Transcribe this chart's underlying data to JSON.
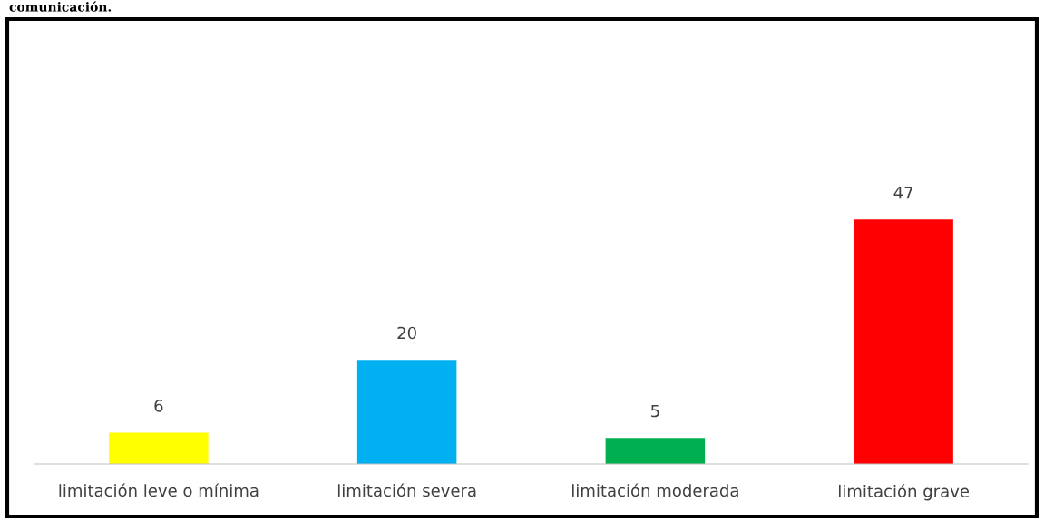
{
  "chart_data": {
    "type": "bar",
    "title": "comunicación.",
    "categories": [
      "limitación leve o mínima",
      "limitación severa",
      "limitación moderada",
      "limitación grave"
    ],
    "values": [
      6,
      20,
      5,
      47
    ],
    "colors": [
      "#ffff00",
      "#00b0f0",
      "#00b050",
      "#ff0000"
    ],
    "data_labels": true,
    "grid": false,
    "legend": false
  }
}
